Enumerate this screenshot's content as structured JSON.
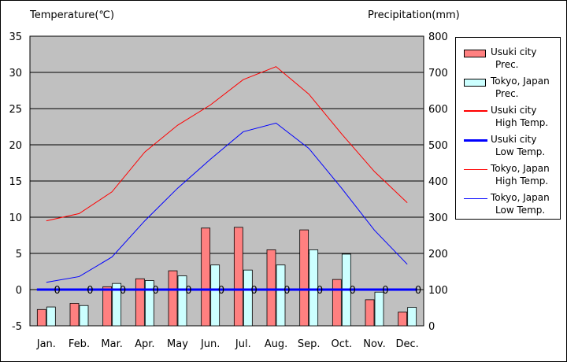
{
  "chart_data": {
    "type": "bar+line",
    "left_axis_title": "Temperature(℃)",
    "right_axis_title": "Precipitation(mm)",
    "left_ylim": [
      -5,
      35
    ],
    "left_ticks": [
      "35",
      "30",
      "25",
      "20",
      "15",
      "10",
      "5",
      "0",
      "-5"
    ],
    "right_ylim": [
      0,
      800
    ],
    "right_ticks": [
      "800",
      "700",
      "600",
      "500",
      "400",
      "300",
      "200",
      "100",
      "0"
    ],
    "categories": [
      "Jan.",
      "Feb.",
      "Mar.",
      "Apr.",
      "May",
      "Jun.",
      "Jul.",
      "Aug.",
      "Sep.",
      "Oct.",
      "Nov.",
      "Dec."
    ],
    "bar_series": [
      {
        "name": "Usuki city Prec.",
        "line1": "Usuki city",
        "line2": "Prec.",
        "color": "#ff8080",
        "values": [
          45,
          62,
          108,
          130,
          152,
          270,
          272,
          210,
          265,
          128,
          72,
          38
        ]
      },
      {
        "name": "Tokyo, Japan Prec.",
        "line1": "Tokyo, Japan",
        "line2": "Prec.",
        "color": "#ccffff",
        "values": [
          52,
          56,
          117,
          125,
          138,
          168,
          154,
          168,
          210,
          198,
          93,
          51
        ]
      }
    ],
    "line_series": [
      {
        "name": "Usuki city High Temp.",
        "line1": "Usuki city",
        "line2": "High Temp.",
        "color": "#ff0000",
        "width": 2,
        "values": [
          0,
          0,
          0,
          0,
          0,
          0,
          0,
          0,
          0,
          0,
          0,
          0
        ],
        "legend_only": true
      },
      {
        "name": "Usuki city Low Temp.",
        "line1": "Usuki city",
        "line2": "Low Temp.",
        "color": "#0000ff",
        "width": 3,
        "values": [
          0,
          0,
          0,
          0,
          0,
          0,
          0,
          0,
          0,
          0,
          0,
          0
        ],
        "labels": [
          "0",
          "0",
          "0",
          "0",
          "0",
          "0",
          "0",
          "0",
          "0",
          "0",
          "0",
          "0"
        ]
      },
      {
        "name": "Tokyo, Japan High Temp.",
        "line1": "Tokyo, Japan",
        "line2": "High Temp.",
        "color": "#ff0000",
        "width": 1,
        "values": [
          9.5,
          10.5,
          13.5,
          19,
          22.7,
          25.5,
          29,
          30.8,
          27,
          21.5,
          16.3,
          12
        ]
      },
      {
        "name": "Tokyo, Japan Low Temp.",
        "line1": "Tokyo, Japan",
        "line2": "Low Temp.",
        "color": "#0000ff",
        "width": 1,
        "values": [
          1,
          1.8,
          4.5,
          9.5,
          14,
          18,
          21.8,
          23,
          19.5,
          14,
          8.2,
          3.5
        ]
      }
    ],
    "grid": true,
    "plot_background": "#c0c0c0",
    "legend_position": "right"
  }
}
